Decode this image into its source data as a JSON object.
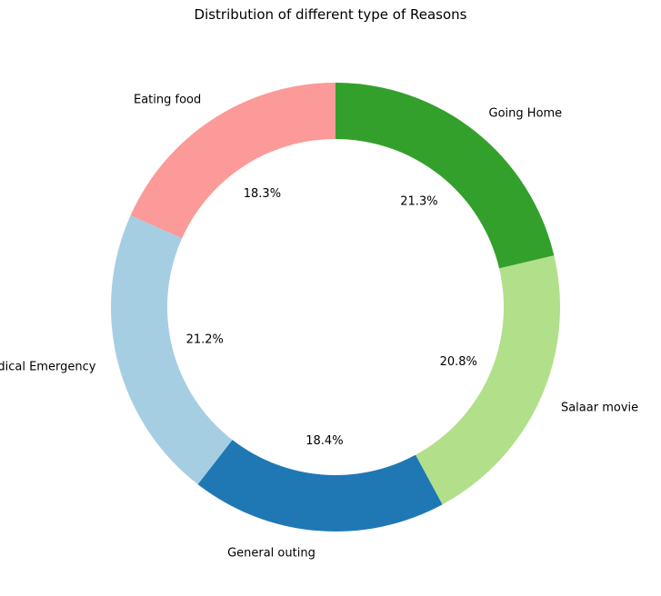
{
  "chart_data": {
    "type": "pie",
    "variant": "donut",
    "title": "Distribution of different type of Reasons",
    "start": "top",
    "direction": "counterclockwise",
    "categories": [
      "Eating food",
      "Medical Emergency",
      "General outing",
      "Salaar movie",
      "Going Home"
    ],
    "values": [
      18.3,
      21.2,
      18.4,
      20.8,
      21.3
    ],
    "labels": [
      "18.3%",
      "21.2%",
      "18.4%",
      "20.8%",
      "21.3%"
    ],
    "colors": [
      "#fb9a99",
      "#a6cee3",
      "#1f78b4",
      "#b2df8a",
      "#33a02c"
    ],
    "legend": "none",
    "grid": false
  }
}
